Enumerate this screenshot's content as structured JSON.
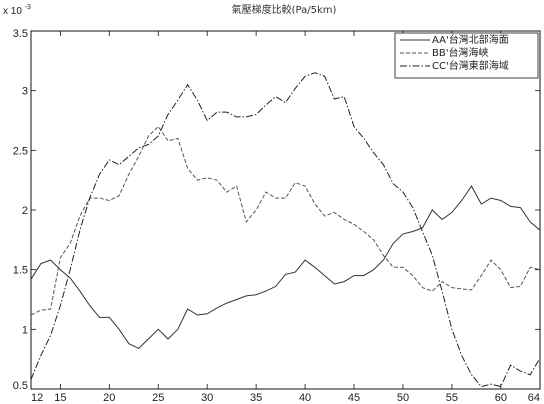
{
  "chart_data": {
    "type": "line",
    "title": "氣壓梯度比較(Pa/5km)",
    "xlabel": "",
    "ylabel": "",
    "y_multiplier_label": "x 10",
    "y_multiplier_exp": "-3",
    "xlim": [
      12,
      64
    ],
    "ylim": [
      0.5,
      3.5
    ],
    "x_ticks": [
      12,
      15,
      20,
      25,
      30,
      35,
      40,
      45,
      50,
      55,
      60,
      64
    ],
    "y_ticks": [
      0.5,
      1,
      1.5,
      2,
      2.5,
      3,
      3.5
    ],
    "y_tick_labels": [
      "0.5",
      "1",
      "1.5",
      "2",
      "2.5",
      "3",
      "3.5"
    ],
    "legend_position": "top-right",
    "grid": false,
    "x": [
      12,
      13,
      14,
      15,
      16,
      17,
      18,
      19,
      20,
      21,
      22,
      23,
      24,
      25,
      26,
      27,
      28,
      29,
      30,
      31,
      32,
      33,
      34,
      35,
      36,
      37,
      38,
      39,
      40,
      41,
      42,
      43,
      44,
      45,
      46,
      47,
      48,
      49,
      50,
      51,
      52,
      53,
      54,
      55,
      56,
      57,
      58,
      59,
      60,
      61,
      62,
      63,
      64
    ],
    "series": [
      {
        "name": "AA'台灣北部海面",
        "color": "#333333",
        "dash": "none",
        "values": [
          1.42,
          1.55,
          1.58,
          1.5,
          1.43,
          1.32,
          1.2,
          1.1,
          1.1,
          1.0,
          0.88,
          0.84,
          0.92,
          1.0,
          0.92,
          1.0,
          1.17,
          1.12,
          1.13,
          1.18,
          1.22,
          1.25,
          1.28,
          1.29,
          1.32,
          1.36,
          1.46,
          1.48,
          1.58,
          1.52,
          1.45,
          1.38,
          1.4,
          1.45,
          1.45,
          1.5,
          1.58,
          1.72,
          1.8,
          1.82,
          1.85,
          2.0,
          1.92,
          1.98,
          2.08,
          2.2,
          2.05,
          2.1,
          2.08,
          2.03,
          2.02,
          1.9,
          1.83
        ]
      },
      {
        "name": "BB'台灣海峽",
        "color": "#555555",
        "dash": "4,2",
        "values": [
          1.12,
          1.16,
          1.17,
          1.6,
          1.72,
          1.95,
          2.1,
          2.1,
          2.08,
          2.12,
          2.3,
          2.45,
          2.62,
          2.7,
          2.58,
          2.6,
          2.35,
          2.25,
          2.27,
          2.25,
          2.15,
          2.2,
          1.9,
          2.0,
          2.15,
          2.1,
          2.1,
          2.23,
          2.2,
          2.05,
          1.95,
          1.98,
          1.92,
          1.88,
          1.82,
          1.75,
          1.62,
          1.52,
          1.52,
          1.45,
          1.35,
          1.32,
          1.4,
          1.35,
          1.34,
          1.33,
          1.45,
          1.58,
          1.5,
          1.35,
          1.36,
          1.52,
          1.5
        ]
      },
      {
        "name": "CC'台灣東部海域",
        "color": "#222222",
        "dash": "7,2,1.5,2",
        "values": [
          0.58,
          0.78,
          0.95,
          1.2,
          1.5,
          1.83,
          2.1,
          2.3,
          2.42,
          2.38,
          2.45,
          2.52,
          2.55,
          2.62,
          2.8,
          2.92,
          3.05,
          2.92,
          2.75,
          2.82,
          2.82,
          2.78,
          2.78,
          2.8,
          2.88,
          2.95,
          2.9,
          3.02,
          3.12,
          3.15,
          3.12,
          2.93,
          2.95,
          2.7,
          2.6,
          2.48,
          2.38,
          2.22,
          2.15,
          2.02,
          1.82,
          1.62,
          1.32,
          1.0,
          0.78,
          0.62,
          0.52,
          0.54,
          0.52,
          0.7,
          0.65,
          0.62,
          0.76
        ]
      }
    ]
  }
}
